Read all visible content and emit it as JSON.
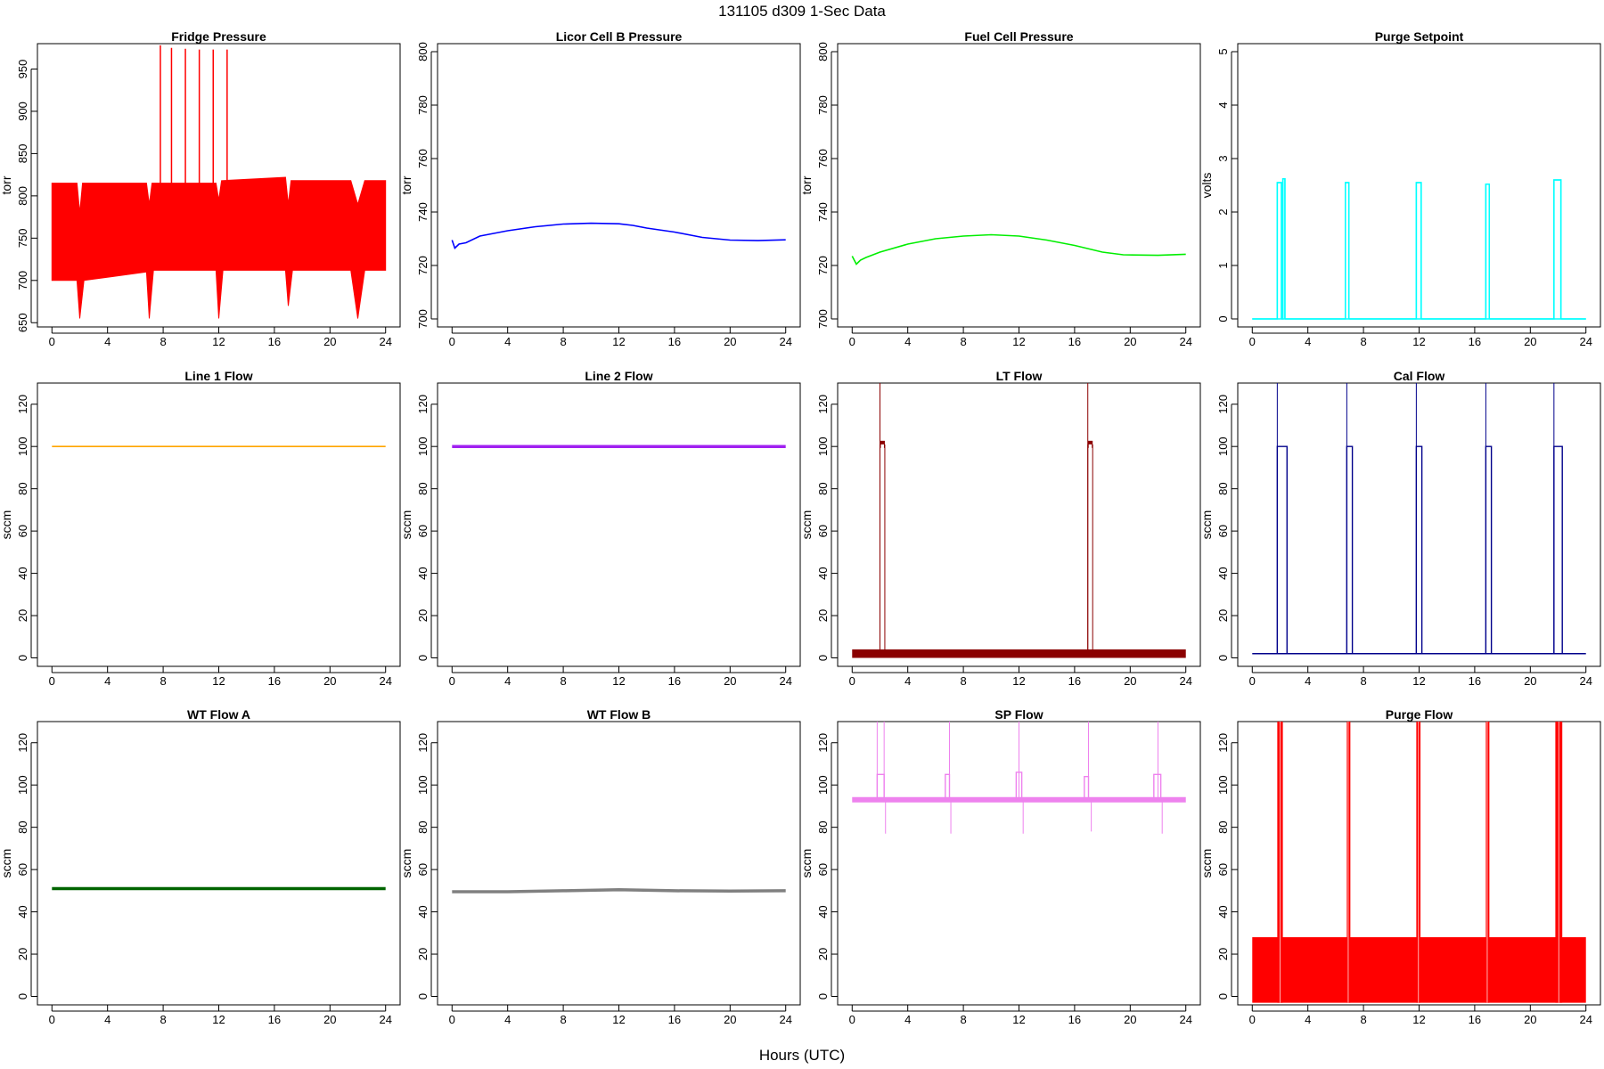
{
  "figure": {
    "title": "131105   d309   1-Sec Data",
    "xlabel": "Hours (UTC)"
  },
  "chart_data": [
    {
      "type": "line",
      "title": "Fridge Pressure",
      "ylabel": "torr",
      "color": "#ff0000",
      "xlim": [
        0,
        24
      ],
      "ylim": [
        645,
        980
      ],
      "xticks": [
        0,
        4,
        8,
        12,
        16,
        20,
        24
      ],
      "yticks": [
        650,
        700,
        750,
        800,
        850,
        900,
        950
      ],
      "grid": false,
      "series": [
        {
          "upper": [
            [
              0,
              815
            ],
            [
              1.8,
              815
            ],
            [
              2,
              780
            ],
            [
              2.2,
              815
            ],
            [
              6.8,
              815
            ],
            [
              7,
              790
            ],
            [
              7.2,
              815
            ],
            [
              11.8,
              815
            ],
            [
              12,
              795
            ],
            [
              12.2,
              818
            ],
            [
              16.8,
              822
            ],
            [
              17,
              790
            ],
            [
              17.2,
              818
            ],
            [
              21.5,
              818
            ],
            [
              22,
              790
            ],
            [
              22.5,
              818
            ],
            [
              24,
              818
            ]
          ],
          "lower": [
            [
              0,
              700
            ],
            [
              1.8,
              700
            ],
            [
              2,
              655
            ],
            [
              2.3,
              700
            ],
            [
              6.8,
              710
            ],
            [
              7,
              655
            ],
            [
              7.3,
              712
            ],
            [
              11.8,
              712
            ],
            [
              12,
              655
            ],
            [
              12.3,
              712
            ],
            [
              16.8,
              712
            ],
            [
              17,
              670
            ],
            [
              17.3,
              712
            ],
            [
              21.5,
              712
            ],
            [
              22,
              655
            ],
            [
              22.5,
              712
            ],
            [
              24,
              712
            ]
          ],
          "spikes": [
            [
              7.8,
              978
            ],
            [
              8.6,
              975
            ],
            [
              9.6,
              974
            ],
            [
              10.6,
              973
            ],
            [
              11.6,
              973
            ],
            [
              12.6,
              973
            ]
          ]
        }
      ]
    },
    {
      "type": "line",
      "title": "Licor Cell B Pressure",
      "ylabel": "torr",
      "color": "#0000ff",
      "xlim": [
        0,
        24
      ],
      "ylim": [
        697,
        803
      ],
      "xticks": [
        0,
        4,
        8,
        12,
        16,
        20,
        24
      ],
      "yticks": [
        700,
        720,
        740,
        760,
        780,
        800
      ],
      "grid": false,
      "series": [
        {
          "values": [
            [
              0,
              729.5
            ],
            [
              0.2,
              726.5
            ],
            [
              0.5,
              728
            ],
            [
              1,
              728.5
            ],
            [
              2,
              731
            ],
            [
              4,
              733
            ],
            [
              6,
              734.5
            ],
            [
              8,
              735.5
            ],
            [
              10,
              735.8
            ],
            [
              12,
              735.6
            ],
            [
              13,
              735
            ],
            [
              14,
              734
            ],
            [
              16,
              732.5
            ],
            [
              18,
              730.5
            ],
            [
              20,
              729.5
            ],
            [
              22,
              729.3
            ],
            [
              24,
              729.6
            ]
          ]
        }
      ]
    },
    {
      "type": "line",
      "title": "Fuel Cell Pressure",
      "ylabel": "torr",
      "color": "#00ee00",
      "xlim": [
        0,
        24
      ],
      "ylim": [
        697,
        803
      ],
      "xticks": [
        0,
        4,
        8,
        12,
        16,
        20,
        24
      ],
      "yticks": [
        700,
        720,
        740,
        760,
        780,
        800
      ],
      "grid": false,
      "series": [
        {
          "values": [
            [
              0,
              723.5
            ],
            [
              0.3,
              720.5
            ],
            [
              0.6,
              722
            ],
            [
              1,
              723
            ],
            [
              2,
              725
            ],
            [
              4,
              728
            ],
            [
              6,
              730
            ],
            [
              8,
              731
            ],
            [
              10,
              731.5
            ],
            [
              12,
              731
            ],
            [
              14,
              729.5
            ],
            [
              16,
              727.5
            ],
            [
              18,
              725
            ],
            [
              19.5,
              724
            ],
            [
              22,
              723.8
            ],
            [
              24,
              724.2
            ]
          ]
        }
      ]
    },
    {
      "type": "line",
      "title": "Purge Setpoint",
      "ylabel": "volts",
      "color": "#00ffff",
      "xlim": [
        0,
        24
      ],
      "ylim": [
        -0.15,
        5.15
      ],
      "xticks": [
        0,
        4,
        8,
        12,
        16,
        20,
        24
      ],
      "yticks": [
        0,
        1,
        2,
        3,
        4,
        5
      ],
      "grid": false,
      "series": [
        {
          "pulses": [
            [
              1.8,
              2.1,
              2.55
            ],
            [
              2.2,
              2.35,
              2.62
            ],
            [
              6.7,
              6.95,
              2.55
            ],
            [
              11.8,
              12.15,
              2.55
            ],
            [
              16.8,
              17.05,
              2.52
            ],
            [
              21.7,
              22.2,
              2.6
            ]
          ],
          "baseline": 0
        }
      ]
    },
    {
      "type": "line",
      "title": "Line 1 Flow",
      "ylabel": "sccm",
      "color": "#ffa500",
      "xlim": [
        0,
        24
      ],
      "ylim": [
        -4,
        130
      ],
      "xticks": [
        0,
        4,
        8,
        12,
        16,
        20,
        24
      ],
      "yticks": [
        0,
        20,
        40,
        60,
        80,
        100,
        120
      ],
      "grid": false,
      "series": [
        {
          "values": [
            [
              0,
              100
            ],
            [
              24,
              100
            ]
          ]
        }
      ]
    },
    {
      "type": "line",
      "title": "Line 2 Flow",
      "ylabel": "sccm",
      "color": "#a020f0",
      "xlim": [
        0,
        24
      ],
      "ylim": [
        -4,
        130
      ],
      "xticks": [
        0,
        4,
        8,
        12,
        16,
        20,
        24
      ],
      "yticks": [
        0,
        20,
        40,
        60,
        80,
        100,
        120
      ],
      "grid": false,
      "series": [
        {
          "values": [
            [
              0,
              100
            ],
            [
              24,
              100
            ]
          ]
        }
      ]
    },
    {
      "type": "line",
      "title": "LT Flow",
      "ylabel": "sccm",
      "color": "#8b0000",
      "xlim": [
        0,
        24
      ],
      "ylim": [
        -4,
        130
      ],
      "xticks": [
        0,
        4,
        8,
        12,
        16,
        20,
        24
      ],
      "yticks": [
        0,
        20,
        40,
        60,
        80,
        100,
        120
      ],
      "grid": false,
      "series": [
        {
          "band": [
            0,
            4
          ],
          "pulses": [
            [
              2.0,
              2.35,
              101
            ],
            [
              16.95,
              17.3,
              101
            ]
          ],
          "spikes": [
            [
              2.0,
              130
            ],
            [
              16.95,
              130
            ]
          ]
        }
      ]
    },
    {
      "type": "line",
      "title": "Cal Flow",
      "ylabel": "sccm",
      "color": "#00008b",
      "xlim": [
        0,
        24
      ],
      "ylim": [
        -4,
        130
      ],
      "xticks": [
        0,
        4,
        8,
        12,
        16,
        20,
        24
      ],
      "yticks": [
        0,
        20,
        40,
        60,
        80,
        100,
        120
      ],
      "grid": false,
      "series": [
        {
          "baseline": 2,
          "pulses": [
            [
              1.8,
              2.5,
              100
            ],
            [
              6.8,
              7.2,
              100
            ],
            [
              11.8,
              12.2,
              100
            ],
            [
              16.8,
              17.2,
              100
            ],
            [
              21.7,
              22.3,
              100
            ]
          ],
          "spikes": [
            [
              1.8,
              130
            ],
            [
              6.8,
              130
            ],
            [
              11.8,
              130
            ],
            [
              16.8,
              130
            ],
            [
              21.7,
              130
            ]
          ]
        }
      ]
    },
    {
      "type": "line",
      "title": "WT Flow A",
      "ylabel": "sccm",
      "color": "#006400",
      "xlim": [
        0,
        24
      ],
      "ylim": [
        -4,
        130
      ],
      "xticks": [
        0,
        4,
        8,
        12,
        16,
        20,
        24
      ],
      "yticks": [
        0,
        20,
        40,
        60,
        80,
        100,
        120
      ],
      "grid": false,
      "series": [
        {
          "values": [
            [
              0,
              51
            ],
            [
              24,
              51
            ]
          ]
        }
      ]
    },
    {
      "type": "line",
      "title": "WT Flow B",
      "ylabel": "sccm",
      "color": "#808080",
      "xlim": [
        0,
        24
      ],
      "ylim": [
        -4,
        130
      ],
      "xticks": [
        0,
        4,
        8,
        12,
        16,
        20,
        24
      ],
      "yticks": [
        0,
        20,
        40,
        60,
        80,
        100,
        120
      ],
      "grid": false,
      "series": [
        {
          "values": [
            [
              0,
              49.5
            ],
            [
              4,
              49.5
            ],
            [
              8,
              50
            ],
            [
              12,
              50.5
            ],
            [
              16,
              50
            ],
            [
              20,
              49.8
            ],
            [
              24,
              50
            ]
          ]
        }
      ]
    },
    {
      "type": "line",
      "title": "SP Flow",
      "ylabel": "sccm",
      "color": "#ee82ee",
      "xlim": [
        0,
        24
      ],
      "ylim": [
        -4,
        130
      ],
      "xticks": [
        0,
        4,
        8,
        12,
        16,
        20,
        24
      ],
      "yticks": [
        0,
        20,
        40,
        60,
        80,
        100,
        120
      ],
      "grid": false,
      "series": [
        {
          "baseline": 93,
          "pulses": [
            [
              1.8,
              2.3,
              105
            ],
            [
              6.7,
              7.0,
              105
            ],
            [
              11.8,
              12.2,
              106
            ],
            [
              16.7,
              17.0,
              104
            ],
            [
              21.7,
              22.2,
              105
            ]
          ],
          "spikes": [
            [
              1.8,
              130
            ],
            [
              2.3,
              130
            ],
            [
              7.0,
              130
            ],
            [
              12.0,
              130
            ],
            [
              17.0,
              130
            ],
            [
              22.0,
              130
            ]
          ],
          "dips": [
            [
              2.4,
              77
            ],
            [
              7.1,
              77
            ],
            [
              12.3,
              77
            ],
            [
              17.2,
              78
            ],
            [
              22.3,
              77
            ]
          ]
        }
      ]
    },
    {
      "type": "line",
      "title": "Purge Flow",
      "ylabel": "sccm",
      "color": "#ff0000",
      "xlim": [
        0,
        24
      ],
      "ylim": [
        -4,
        130
      ],
      "xticks": [
        0,
        4,
        8,
        12,
        16,
        20,
        24
      ],
      "yticks": [
        0,
        20,
        40,
        60,
        80,
        100,
        120
      ],
      "grid": false,
      "series": [
        {
          "band": [
            -3,
            28
          ],
          "bursts": [
            [
              1.8,
              2.2
            ],
            [
              6.8,
              7.0
            ],
            [
              11.8,
              12.1
            ],
            [
              16.8,
              17.0
            ],
            [
              21.8,
              22.3
            ]
          ]
        }
      ]
    }
  ]
}
